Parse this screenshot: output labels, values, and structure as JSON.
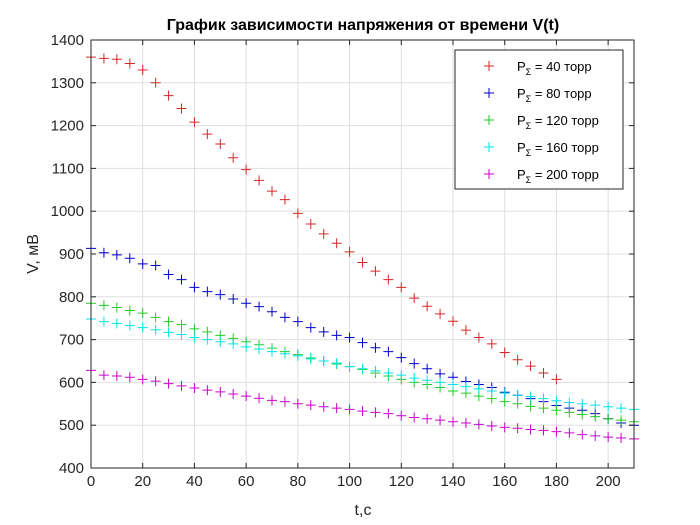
{
  "chart_data": {
    "type": "scatter",
    "title": "График зависимости напряжения от времени V(t)",
    "xlabel": "t,c",
    "ylabel": "V, мВ",
    "xlim": [
      0,
      210
    ],
    "ylim": [
      400,
      1400
    ],
    "xticks": [
      0,
      20,
      40,
      60,
      80,
      100,
      120,
      140,
      160,
      180,
      200
    ],
    "yticks": [
      400,
      500,
      600,
      700,
      800,
      900,
      1000,
      1100,
      1200,
      1300,
      1400
    ],
    "grid": true,
    "legend_position": "top-right",
    "marker": "+",
    "series": [
      {
        "name_prefix": "P",
        "name_sub": "Σ",
        "name_suffix": " = 40 торр",
        "color": "#d62728",
        "x": [
          0,
          5,
          10,
          15,
          20,
          25,
          30,
          35,
          40,
          45,
          50,
          55,
          60,
          65,
          70,
          75,
          80,
          85,
          90,
          95,
          100,
          105,
          110,
          115,
          120,
          125,
          130,
          135,
          140,
          145,
          150,
          155,
          160,
          165,
          170,
          175,
          180
        ],
        "y": [
          1360,
          1357,
          1355,
          1345,
          1330,
          1300,
          1270,
          1240,
          1208,
          1180,
          1157,
          1125,
          1097,
          1072,
          1047,
          1027,
          995,
          970,
          947,
          925,
          905,
          880,
          860,
          840,
          822,
          797,
          778,
          760,
          743,
          722,
          705,
          690,
          670,
          653,
          638,
          622,
          607
        ]
      },
      {
        "name_prefix": "P",
        "name_sub": "Σ",
        "name_suffix": " = 80 торр",
        "color": "#0000cc",
        "x": [
          0,
          5,
          10,
          15,
          20,
          25,
          30,
          35,
          40,
          45,
          50,
          55,
          60,
          65,
          70,
          75,
          80,
          85,
          90,
          95,
          100,
          105,
          110,
          115,
          120,
          125,
          130,
          135,
          140,
          145,
          150,
          155,
          160,
          165,
          170,
          175,
          180,
          185,
          190,
          195,
          200,
          205,
          210
        ],
        "y": [
          913,
          903,
          898,
          890,
          877,
          873,
          852,
          840,
          822,
          812,
          805,
          795,
          785,
          777,
          765,
          752,
          742,
          728,
          718,
          710,
          705,
          693,
          681,
          672,
          658,
          644,
          632,
          620,
          612,
          602,
          595,
          588,
          577,
          570,
          562,
          555,
          546,
          540,
          535,
          527,
          515,
          505,
          500
        ]
      },
      {
        "name_prefix": "P",
        "name_sub": "Σ",
        "name_suffix": " = 120 торр",
        "color": "#22cc22",
        "x": [
          0,
          5,
          10,
          15,
          20,
          25,
          30,
          35,
          40,
          45,
          50,
          55,
          60,
          65,
          70,
          75,
          80,
          85,
          90,
          95,
          100,
          105,
          110,
          115,
          120,
          125,
          130,
          135,
          140,
          145,
          150,
          155,
          160,
          165,
          170,
          175,
          180,
          185,
          190,
          195,
          200,
          205,
          210
        ],
        "y": [
          785,
          780,
          775,
          768,
          762,
          752,
          742,
          735,
          725,
          718,
          710,
          703,
          695,
          688,
          680,
          672,
          665,
          657,
          650,
          643,
          637,
          630,
          622,
          615,
          607,
          600,
          595,
          588,
          580,
          575,
          568,
          562,
          555,
          550,
          544,
          540,
          535,
          530,
          525,
          520,
          515,
          512,
          508
        ]
      },
      {
        "name_prefix": "P",
        "name_sub": "Σ",
        "name_suffix": " = 160 торр",
        "color": "#00e6e6",
        "x": [
          0,
          5,
          10,
          15,
          20,
          25,
          30,
          35,
          40,
          45,
          50,
          55,
          60,
          65,
          70,
          75,
          80,
          85,
          90,
          95,
          100,
          105,
          110,
          115,
          120,
          125,
          130,
          135,
          140,
          145,
          150,
          155,
          160,
          165,
          170,
          175,
          180,
          185,
          190,
          195,
          200,
          205,
          210
        ],
        "y": [
          748,
          742,
          738,
          733,
          728,
          723,
          717,
          712,
          705,
          700,
          695,
          690,
          683,
          678,
          672,
          667,
          662,
          655,
          650,
          645,
          637,
          632,
          627,
          622,
          617,
          610,
          605,
          600,
          595,
          590,
          585,
          580,
          575,
          570,
          567,
          562,
          557,
          553,
          550,
          547,
          543,
          540,
          537
        ]
      },
      {
        "name_prefix": "P",
        "name_sub": "Σ",
        "name_suffix": " = 200 торр",
        "color": "#cc00cc",
        "x": [
          0,
          5,
          10,
          15,
          20,
          25,
          30,
          35,
          40,
          45,
          50,
          55,
          60,
          65,
          70,
          75,
          80,
          85,
          90,
          95,
          100,
          105,
          110,
          115,
          120,
          125,
          130,
          135,
          140,
          145,
          150,
          155,
          160,
          165,
          170,
          175,
          180,
          185,
          190,
          195,
          200,
          205,
          210
        ],
        "y": [
          628,
          617,
          615,
          612,
          607,
          603,
          597,
          592,
          587,
          582,
          578,
          573,
          568,
          563,
          558,
          555,
          550,
          547,
          543,
          540,
          537,
          533,
          530,
          527,
          522,
          518,
          515,
          512,
          508,
          505,
          502,
          498,
          495,
          493,
          490,
          488,
          485,
          482,
          478,
          475,
          472,
          470,
          468
        ]
      }
    ]
  }
}
